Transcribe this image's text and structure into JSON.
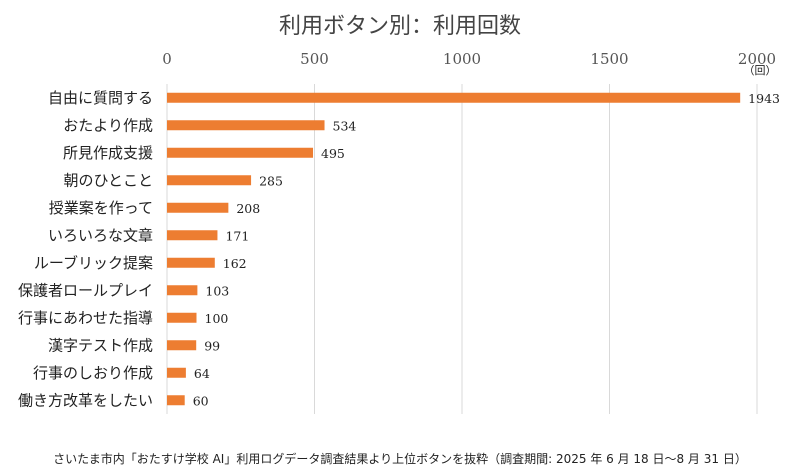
{
  "chart_data": {
    "type": "bar",
    "orientation": "horizontal",
    "title": "利用ボタン別：利用回数",
    "unit": "（回）",
    "categories": [
      "自由に質問する",
      "おたより作成",
      "所見作成支援",
      "朝のひとこと",
      "授業案を作って",
      "いろいろな文章",
      "ルーブリック提案",
      "保護者ロールプレイ",
      "行事にあわせた指導",
      "漢字テスト作成",
      "行事のしおり作成",
      "働き方改革をしたい"
    ],
    "values": [
      1943,
      534,
      495,
      285,
      208,
      171,
      162,
      103,
      100,
      99,
      64,
      60
    ],
    "xlim": [
      0,
      2000
    ],
    "xticks": [
      0,
      500,
      1000,
      1500,
      2000
    ],
    "axis_position": "top",
    "grid": true,
    "legend": "none",
    "bar_color": "#ED7D31",
    "grid_color": "#D9D9D9"
  },
  "footer": {
    "source": "さいたま市内「おたすけ学校 AI」利用ログデータ調査結果より上位ボタンを抜粋（調査期間: 2025 年 6 月 18 日～8 月 31 日）"
  }
}
